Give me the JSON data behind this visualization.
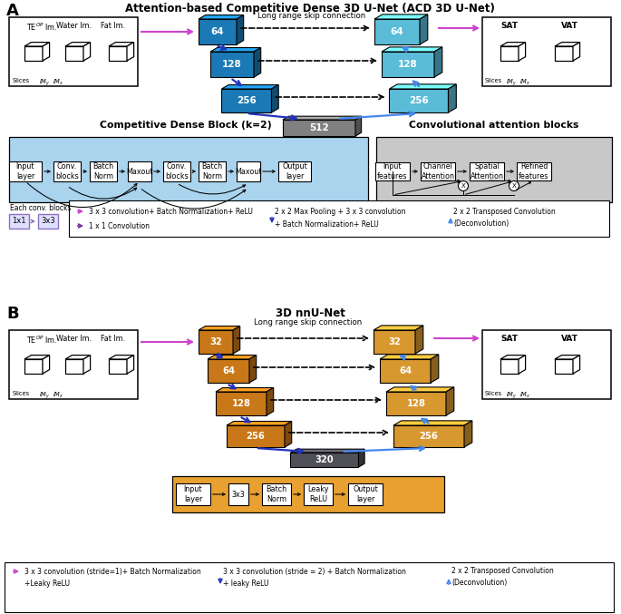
{
  "title_A": "Attention-based Competitive Dense 3D U-Net (ACD 3D U-Net)",
  "title_B": "3D nnU-Net",
  "label_A": "A",
  "label_B": "B",
  "enc_blue": "#1b7ab5",
  "dec_blue": "#5bbcd8",
  "enc_orange": "#c87818",
  "dec_orange": "#d89830",
  "gray_bot": "#808080",
  "gray_bot_B": "#505058",
  "purple_arrow": "#cc44cc",
  "dark_blue_arrow": "#2233bb",
  "light_blue_arrow": "#4488ee",
  "bg_white": "#ffffff",
  "blue_bg": "#aad4ee",
  "gray_bg": "#c8c8c8",
  "orange_bg": "#e8a030",
  "legend_border": "#888888",
  "each_conv_bg": "#dde0ff",
  "each_conv_border": "#9070c0"
}
